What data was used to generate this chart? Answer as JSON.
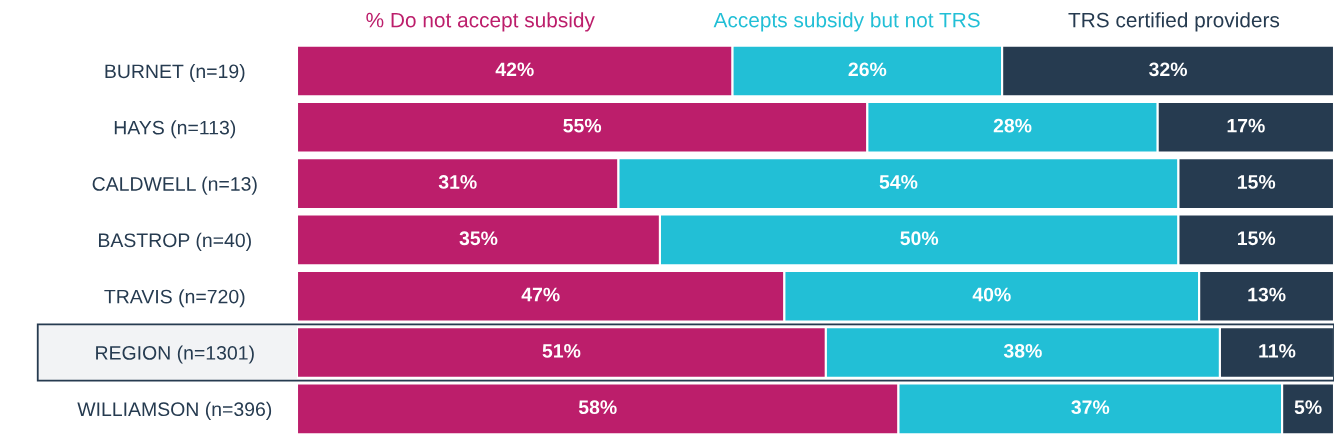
{
  "chart_data": {
    "type": "bar",
    "orientation": "horizontal",
    "stacked": true,
    "legend": "top",
    "categories": [
      "BURNET (n=19)",
      "HAYS (n=113)",
      "CALDWELL (n=13)",
      "BASTROP (n=40)",
      "TRAVIS (n=720)",
      "REGION (n=1301)",
      "WILLIAMSON (n=396)"
    ],
    "series": [
      {
        "name": "% Do not accept subsidy",
        "color": "#bc1e6b",
        "values": [
          42,
          55,
          31,
          35,
          47,
          51,
          58
        ],
        "value_labels": [
          "42%",
          "55%",
          "31%",
          "35%",
          "47%",
          "51%",
          "58%"
        ]
      },
      {
        "name": "Accepts subsidy but not TRS",
        "color": "#22bfd6",
        "values": [
          26,
          28,
          54,
          50,
          40,
          38,
          37
        ],
        "value_labels": [
          "26%",
          "28%",
          "54%",
          "50%",
          "40%",
          "38%",
          "37%"
        ]
      },
      {
        "name": "TRS certified providers",
        "color": "#263b50",
        "values": [
          32,
          17,
          15,
          15,
          13,
          11,
          5
        ],
        "value_labels": [
          "32%",
          "17%",
          "15%",
          "15%",
          "13%",
          "11%",
          "5%"
        ]
      }
    ],
    "bands": [
      {
        "axis": "y",
        "from": "REGION (n=1301)",
        "to": "REGION (n=1301)",
        "color": "#263b50"
      }
    ]
  }
}
